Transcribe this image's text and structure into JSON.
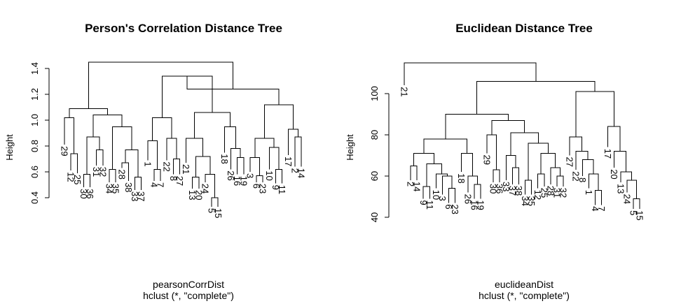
{
  "chart_data": [
    {
      "type": "dendrogram",
      "title": "Person's Correlation Distance Tree",
      "xlabel": "pearsonCorrDist",
      "sublabel": "hclust (*, \"complete\")",
      "ylabel": "Height",
      "ylim": [
        0.4,
        1.45
      ],
      "yticks": [
        "0.4",
        "0.6",
        "0.8",
        "1.0",
        "1.2",
        "1.4"
      ],
      "leaves": [
        {
          "label": "29",
          "height": 0.81
        },
        {
          "label": "12",
          "height": 0.61
        },
        {
          "label": "25",
          "height": 0.59
        },
        {
          "label": "30",
          "height": 0.48
        },
        {
          "label": "36",
          "height": 0.48
        },
        {
          "label": "31",
          "height": 0.65
        },
        {
          "label": "32",
          "height": 0.65
        },
        {
          "label": "34",
          "height": 0.52
        },
        {
          "label": "35",
          "height": 0.52
        },
        {
          "label": "28",
          "height": 0.63
        },
        {
          "label": "38",
          "height": 0.53
        },
        {
          "label": "33",
          "height": 0.46
        },
        {
          "label": "37",
          "height": 0.46
        },
        {
          "label": "1",
          "height": 0.69
        },
        {
          "label": "4",
          "height": 0.53
        },
        {
          "label": "7",
          "height": 0.53
        },
        {
          "label": "22",
          "height": 0.69
        },
        {
          "label": "8",
          "height": 0.58
        },
        {
          "label": "27",
          "height": 0.58
        },
        {
          "label": "21",
          "height": 0.67
        },
        {
          "label": "13",
          "height": 0.47
        },
        {
          "label": "20",
          "height": 0.47
        },
        {
          "label": "24",
          "height": 0.52
        },
        {
          "label": "5",
          "height": 0.33
        },
        {
          "label": "15",
          "height": 0.33
        },
        {
          "label": "18",
          "height": 0.75
        },
        {
          "label": "26",
          "height": 0.62
        },
        {
          "label": "16",
          "height": 0.58
        },
        {
          "label": "19",
          "height": 0.58
        },
        {
          "label": "3",
          "height": 0.6
        },
        {
          "label": "6",
          "height": 0.52
        },
        {
          "label": "23",
          "height": 0.52
        },
        {
          "label": "10",
          "height": 0.62
        },
        {
          "label": "9",
          "height": 0.51
        },
        {
          "label": "11",
          "height": 0.51
        },
        {
          "label": "17",
          "height": 0.73
        },
        {
          "label": "2",
          "height": 0.64
        },
        {
          "label": "14",
          "height": 0.64
        }
      ],
      "merges": [
        {
          "left": {
            "leaf": 1
          },
          "right": {
            "leaf": 2
          },
          "height": 0.74
        },
        {
          "left": {
            "leaf": 0
          },
          "right": {
            "node": 0
          },
          "height": 1.02
        },
        {
          "left": {
            "leaf": 3
          },
          "right": {
            "leaf": 4
          },
          "height": 0.58
        },
        {
          "left": {
            "leaf": 5
          },
          "right": {
            "leaf": 6
          },
          "height": 0.77
        },
        {
          "left": {
            "node": 2
          },
          "right": {
            "node": 3
          },
          "height": 0.87
        },
        {
          "left": {
            "leaf": 7
          },
          "right": {
            "leaf": 8
          },
          "height": 0.62
        },
        {
          "left": {
            "leaf": 9
          },
          "right": {
            "leaf": 10
          },
          "height": 0.67
        },
        {
          "left": {
            "leaf": 11
          },
          "right": {
            "leaf": 12
          },
          "height": 0.56
        },
        {
          "left": {
            "node": 6
          },
          "right": {
            "node": 7
          },
          "height": 0.77
        },
        {
          "left": {
            "node": 5
          },
          "right": {
            "node": 8
          },
          "height": 0.95
        },
        {
          "left": {
            "node": 4
          },
          "right": {
            "node": 9
          },
          "height": 1.04
        },
        {
          "left": {
            "node": 1
          },
          "right": {
            "node": 10
          },
          "height": 1.09
        },
        {
          "left": {
            "leaf": 14
          },
          "right": {
            "leaf": 15
          },
          "height": 0.62
        },
        {
          "left": {
            "leaf": 13
          },
          "right": {
            "node": 12
          },
          "height": 0.84
        },
        {
          "left": {
            "leaf": 17
          },
          "right": {
            "leaf": 18
          },
          "height": 0.7
        },
        {
          "left": {
            "leaf": 16
          },
          "right": {
            "node": 14
          },
          "height": 0.86
        },
        {
          "left": {
            "node": 13
          },
          "right": {
            "node": 15
          },
          "height": 1.02
        },
        {
          "left": {
            "leaf": 20
          },
          "right": {
            "leaf": 21
          },
          "height": 0.56
        },
        {
          "left": {
            "leaf": 23
          },
          "right": {
            "leaf": 24
          },
          "height": 0.4
        },
        {
          "left": {
            "leaf": 22
          },
          "right": {
            "node": 18
          },
          "height": 0.58
        },
        {
          "left": {
            "node": 17
          },
          "right": {
            "node": 19
          },
          "height": 0.72
        },
        {
          "left": {
            "leaf": 19
          },
          "right": {
            "node": 20
          },
          "height": 0.86
        },
        {
          "left": {
            "leaf": 27
          },
          "right": {
            "leaf": 28
          },
          "height": 0.71
        },
        {
          "left": {
            "leaf": 26
          },
          "right": {
            "node": 22
          },
          "height": 0.78
        },
        {
          "left": {
            "leaf": 25
          },
          "right": {
            "node": 23
          },
          "height": 0.95
        },
        {
          "left": {
            "node": 21
          },
          "right": {
            "node": 24
          },
          "height": 1.06
        },
        {
          "left": {
            "node": 16
          },
          "right": {
            "node": 25
          },
          "height": 1.34
        },
        {
          "left": {
            "leaf": 30
          },
          "right": {
            "leaf": 31
          },
          "height": 0.57
        },
        {
          "left": {
            "leaf": 29
          },
          "right": {
            "node": 27
          },
          "height": 0.71
        },
        {
          "left": {
            "leaf": 33
          },
          "right": {
            "leaf": 34
          },
          "height": 0.62
        },
        {
          "left": {
            "leaf": 32
          },
          "right": {
            "node": 29
          },
          "height": 0.79
        },
        {
          "left": {
            "node": 28
          },
          "right": {
            "node": 30
          },
          "height": 0.86
        },
        {
          "left": {
            "leaf": 36
          },
          "right": {
            "leaf": 37
          },
          "height": 0.87
        },
        {
          "left": {
            "leaf": 35
          },
          "right": {
            "node": 32
          },
          "height": 0.93
        },
        {
          "left": {
            "node": 31
          },
          "right": {
            "node": 33
          },
          "height": 1.12
        },
        {
          "left": {
            "node": 26
          },
          "right": {
            "node": 34
          },
          "height": 1.24
        },
        {
          "left": {
            "node": 11
          },
          "right": {
            "node": 35
          },
          "height": 1.45
        }
      ]
    },
    {
      "type": "dendrogram",
      "title": "Euclidean Distance Tree",
      "xlabel": "euclideanDist",
      "sublabel": "hclust (*, \"complete\")",
      "ylabel": "Height",
      "ylim": [
        40,
        115
      ],
      "yticks": [
        "40",
        "60",
        "80",
        "100"
      ],
      "leaves": [
        {
          "label": "21",
          "height": 104
        },
        {
          "label": "2",
          "height": 58
        },
        {
          "label": "14",
          "height": 58
        },
        {
          "label": "9",
          "height": 49
        },
        {
          "label": "11",
          "height": 49
        },
        {
          "label": "10",
          "height": 54
        },
        {
          "label": "3",
          "height": 51
        },
        {
          "label": "6",
          "height": 47
        },
        {
          "label": "23",
          "height": 47
        },
        {
          "label": "18",
          "height": 62
        },
        {
          "label": "26",
          "height": 52
        },
        {
          "label": "16",
          "height": 49
        },
        {
          "label": "19",
          "height": 49
        },
        {
          "label": "29",
          "height": 71
        },
        {
          "label": "30",
          "height": 57
        },
        {
          "label": "36",
          "height": 57
        },
        {
          "label": "33",
          "height": 58
        },
        {
          "label": "37",
          "height": 56
        },
        {
          "label": "38",
          "height": 56
        },
        {
          "label": "34",
          "height": 51
        },
        {
          "label": "35",
          "height": 51
        },
        {
          "label": "12",
          "height": 54
        },
        {
          "label": "25",
          "height": 55
        },
        {
          "label": "28",
          "height": 56
        },
        {
          "label": "31",
          "height": 55
        },
        {
          "label": "32",
          "height": 55
        },
        {
          "label": "27",
          "height": 70
        },
        {
          "label": "22",
          "height": 63
        },
        {
          "label": "8",
          "height": 60
        },
        {
          "label": "1",
          "height": 54
        },
        {
          "label": "4",
          "height": 46
        },
        {
          "label": "7",
          "height": 46
        },
        {
          "label": "17",
          "height": 74
        },
        {
          "label": "20",
          "height": 64
        },
        {
          "label": "13",
          "height": 57
        },
        {
          "label": "24",
          "height": 52
        },
        {
          "label": "5",
          "height": 44
        },
        {
          "label": "15",
          "height": 44
        }
      ],
      "merges": [
        {
          "left": {
            "leaf": 1
          },
          "right": {
            "leaf": 2
          },
          "height": 65
        },
        {
          "left": {
            "leaf": 3
          },
          "right": {
            "leaf": 4
          },
          "height": 55
        },
        {
          "left": {
            "leaf": 7
          },
          "right": {
            "leaf": 8
          },
          "height": 54
        },
        {
          "left": {
            "leaf": 6
          },
          "right": {
            "node": 2
          },
          "height": 60
        },
        {
          "left": {
            "leaf": 5
          },
          "right": {
            "node": 3
          },
          "height": 61
        },
        {
          "left": {
            "node": 1
          },
          "right": {
            "node": 4
          },
          "height": 66
        },
        {
          "left": {
            "node": 0
          },
          "right": {
            "node": 5
          },
          "height": 71
        },
        {
          "left": {
            "leaf": 11
          },
          "right": {
            "leaf": 12
          },
          "height": 56
        },
        {
          "left": {
            "leaf": 10
          },
          "right": {
            "node": 7
          },
          "height": 60
        },
        {
          "left": {
            "leaf": 9
          },
          "right": {
            "node": 8
          },
          "height": 71
        },
        {
          "left": {
            "node": 6
          },
          "right": {
            "node": 9
          },
          "height": 78
        },
        {
          "left": {
            "leaf": 14
          },
          "right": {
            "leaf": 15
          },
          "height": 63
        },
        {
          "left": {
            "leaf": 13
          },
          "right": {
            "node": 11
          },
          "height": 80
        },
        {
          "left": {
            "leaf": 17
          },
          "right": {
            "leaf": 18
          },
          "height": 64
        },
        {
          "left": {
            "leaf": 16
          },
          "right": {
            "node": 13
          },
          "height": 70
        },
        {
          "left": {
            "leaf": 19
          },
          "right": {
            "leaf": 20
          },
          "height": 58
        },
        {
          "left": {
            "leaf": 21
          },
          "right": {
            "leaf": 22
          },
          "height": 61
        },
        {
          "left": {
            "leaf": 24
          },
          "right": {
            "leaf": 25
          },
          "height": 60
        },
        {
          "left": {
            "leaf": 23
          },
          "right": {
            "node": 17
          },
          "height": 64
        },
        {
          "left": {
            "node": 16
          },
          "right": {
            "node": 18
          },
          "height": 71
        },
        {
          "left": {
            "node": 15
          },
          "right": {
            "node": 19
          },
          "height": 76
        },
        {
          "left": {
            "node": 14
          },
          "right": {
            "node": 20
          },
          "height": 81
        },
        {
          "left": {
            "node": 12
          },
          "right": {
            "node": 21
          },
          "height": 87
        },
        {
          "left": {
            "node": 10
          },
          "right": {
            "node": 22
          },
          "height": 90
        },
        {
          "left": {
            "leaf": 30
          },
          "right": {
            "leaf": 31
          },
          "height": 53
        },
        {
          "left": {
            "leaf": 29
          },
          "right": {
            "node": 24
          },
          "height": 61
        },
        {
          "left": {
            "leaf": 28
          },
          "right": {
            "node": 25
          },
          "height": 68
        },
        {
          "left": {
            "leaf": 27
          },
          "right": {
            "node": 26
          },
          "height": 72
        },
        {
          "left": {
            "leaf": 26
          },
          "right": {
            "node": 27
          },
          "height": 79
        },
        {
          "left": {
            "leaf": 36
          },
          "right": {
            "leaf": 37
          },
          "height": 49
        },
        {
          "left": {
            "leaf": 35
          },
          "right": {
            "node": 29
          },
          "height": 58
        },
        {
          "left": {
            "leaf": 34
          },
          "right": {
            "node": 30
          },
          "height": 62
        },
        {
          "left": {
            "leaf": 33
          },
          "right": {
            "node": 31
          },
          "height": 72
        },
        {
          "left": {
            "leaf": 32
          },
          "right": {
            "node": 32
          },
          "height": 84
        },
        {
          "left": {
            "node": 28
          },
          "right": {
            "node": 33
          },
          "height": 101
        },
        {
          "left": {
            "node": 23
          },
          "right": {
            "node": 34
          },
          "height": 106
        },
        {
          "left": {
            "leaf": 0
          },
          "right": {
            "node": 35
          },
          "height": 115
        }
      ]
    }
  ]
}
